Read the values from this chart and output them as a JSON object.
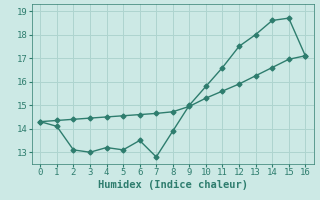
{
  "x": [
    0,
    1,
    2,
    3,
    4,
    5,
    6,
    7,
    8,
    9,
    10,
    11,
    12,
    13,
    14,
    15,
    16
  ],
  "line_zigzag": [
    14.3,
    14.1,
    13.1,
    13.0,
    13.2,
    13.1,
    13.5,
    12.8,
    13.9,
    15.0,
    15.8,
    16.6,
    17.5,
    18.0,
    18.6,
    18.7,
    17.1
  ],
  "line_trend": [
    14.3,
    14.35,
    14.4,
    14.45,
    14.5,
    14.55,
    14.6,
    14.65,
    14.72,
    14.95,
    15.3,
    15.6,
    15.9,
    16.25,
    16.6,
    16.95,
    17.1
  ],
  "line_color": "#2e7d6e",
  "bg_color": "#cce9e5",
  "grid_color": "#aed4cf",
  "xlabel": "Humidex (Indice chaleur)",
  "xlim": [
    -0.5,
    16.5
  ],
  "ylim": [
    12.5,
    19.3
  ],
  "yticks": [
    13,
    14,
    15,
    16,
    17,
    18,
    19
  ],
  "xticks": [
    0,
    1,
    2,
    3,
    4,
    5,
    6,
    7,
    8,
    9,
    10,
    11,
    12,
    13,
    14,
    15,
    16
  ],
  "marker": "D",
  "markersize": 2.5,
  "linewidth": 1.0,
  "xlabel_fontsize": 7.5,
  "tick_fontsize": 6.5
}
